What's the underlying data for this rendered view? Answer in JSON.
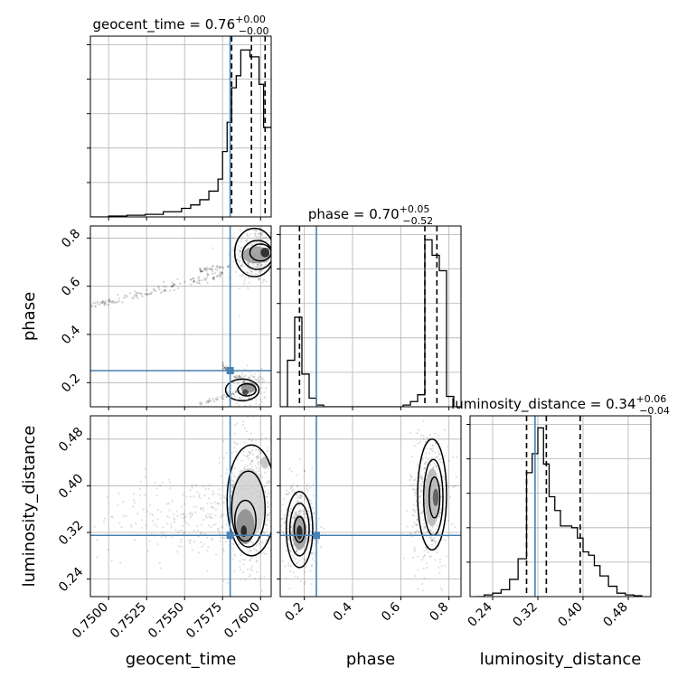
{
  "chart_data": {
    "type": "corner",
    "grid": true,
    "truth_color": "#4682b4",
    "hist_color": "#000000",
    "parameters": [
      {
        "name": "geocent_time",
        "title_prefix": "geocent_time = 0.76",
        "title_sup": "+0.00",
        "title_sub": "−0.00",
        "xlim": [
          0.7488,
          0.7607
        ],
        "ticks": [
          0.75,
          0.7525,
          0.755,
          0.7575,
          0.76
        ],
        "tick_labels": [
          "0.7500",
          "0.7525",
          "0.7550",
          "0.7575",
          "0.7600"
        ],
        "truth": 0.758,
        "quantiles": [
          0.7581,
          0.7594,
          0.7603
        ],
        "hist_max": 1.0,
        "hist_edges": [
          0.7488,
          0.75,
          0.7512,
          0.7524,
          0.7536,
          0.7548,
          0.7554,
          0.756,
          0.7566,
          0.7572,
          0.7575,
          0.7578,
          0.7581,
          0.7584,
          0.7587,
          0.759,
          0.7593,
          0.7596,
          0.7599,
          0.7602,
          0.7605,
          0.7607
        ],
        "hist_values": [
          0.0,
          0.005,
          0.01,
          0.015,
          0.03,
          0.05,
          0.07,
          0.1,
          0.15,
          0.22,
          0.38,
          0.55,
          0.75,
          0.82,
          0.97,
          0.97,
          0.93,
          0.93,
          0.77,
          0.52,
          0.52
        ]
      },
      {
        "name": "phase",
        "title_prefix": "phase = 0.70",
        "title_sup": "+0.05",
        "title_sub": "−0.52",
        "xlim": [
          0.1,
          0.85
        ],
        "ticks": [
          0.2,
          0.4,
          0.6,
          0.8
        ],
        "tick_labels": [
          "0.2",
          "0.4",
          "0.6",
          "0.8"
        ],
        "truth": 0.25,
        "quantiles": [
          0.18,
          0.7,
          0.75
        ],
        "hist_max": 1.0,
        "hist_edges": [
          0.1,
          0.13,
          0.16,
          0.19,
          0.22,
          0.25,
          0.28,
          0.31,
          0.34,
          0.37,
          0.4,
          0.43,
          0.46,
          0.49,
          0.52,
          0.55,
          0.58,
          0.61,
          0.64,
          0.67,
          0.7,
          0.73,
          0.76,
          0.79,
          0.82,
          0.85
        ],
        "hist_values": [
          0.0,
          0.27,
          0.52,
          0.19,
          0.05,
          0.01,
          0.0,
          0.0,
          0.0,
          0.0,
          0.0,
          0.0,
          0.0,
          0.0,
          0.0,
          0.0,
          0.0,
          0.01,
          0.03,
          0.07,
          0.97,
          0.88,
          0.79,
          0.06,
          0.0
        ]
      },
      {
        "name": "luminosity_distance",
        "title_prefix": "luminosity_distance = 0.34",
        "title_sup": "+0.06",
        "title_sub": "−0.04",
        "xlim": [
          0.2,
          0.52
        ],
        "ticks": [
          0.24,
          0.32,
          0.4,
          0.48
        ],
        "tick_labels": [
          "0.24",
          "0.32",
          "0.40",
          "0.48"
        ],
        "truth": 0.315,
        "quantiles": [
          0.3,
          0.335,
          0.395
        ],
        "hist_max": 1.0,
        "hist_edges": [
          0.21,
          0.225,
          0.24,
          0.255,
          0.27,
          0.285,
          0.3,
          0.31,
          0.32,
          0.33,
          0.34,
          0.35,
          0.36,
          0.37,
          0.38,
          0.39,
          0.4,
          0.41,
          0.42,
          0.43,
          0.445,
          0.46,
          0.475,
          0.49,
          0.505
        ],
        "hist_values": [
          0.0,
          0.01,
          0.02,
          0.04,
          0.1,
          0.22,
          0.72,
          0.83,
          0.98,
          0.77,
          0.58,
          0.5,
          0.41,
          0.41,
          0.4,
          0.34,
          0.26,
          0.24,
          0.18,
          0.12,
          0.06,
          0.02,
          0.01,
          0.005
        ]
      }
    ],
    "pairs": [
      {
        "x": "geocent_time",
        "y": "phase",
        "truth": [
          0.758,
          0.25
        ],
        "ylim": [
          0.1,
          0.85
        ],
        "yticks": [
          0.2,
          0.4,
          0.6,
          0.8
        ],
        "ytick_labels": [
          "0.2",
          "0.4",
          "0.6",
          "0.8"
        ],
        "streaks": [
          {
            "from": [
              0.7488,
              0.52
            ],
            "to": [
              0.758,
              0.655
            ],
            "width": 0.03,
            "count": 140
          },
          {
            "from": [
              0.756,
              0.665
            ],
            "to": [
              0.758,
              0.685
            ],
            "width": 0.02,
            "count": 40
          },
          {
            "from": [
              0.7575,
              0.27
            ],
            "to": [
              0.759,
              0.2
            ],
            "width": 0.03,
            "count": 40
          },
          {
            "from": [
              0.756,
              0.11
            ],
            "to": [
              0.759,
              0.17
            ],
            "width": 0.02,
            "count": 40
          }
        ],
        "clusters": [
          {
            "center": [
              0.7597,
              0.73
            ],
            "spread": [
              0.0007,
              0.06
            ],
            "count": 350
          },
          {
            "center": [
              0.7592,
              0.17
            ],
            "spread": [
              0.0006,
              0.04
            ],
            "count": 170
          }
        ],
        "blobs": [
          {
            "center": [
              0.7597,
              0.73
            ],
            "rx": 0.0009,
            "ry": 0.035,
            "fill": "#9a9a9a"
          },
          {
            "center": [
              0.7603,
              0.74
            ],
            "rx": 0.0003,
            "ry": 0.02,
            "fill": "#1e1e1e"
          },
          {
            "center": [
              0.7592,
              0.18
            ],
            "rx": 0.0005,
            "ry": 0.022,
            "fill": "#8a8a8a"
          },
          {
            "center": [
              0.759,
              0.16
            ],
            "rx": 0.0002,
            "ry": 0.012,
            "fill": "#3a3a3a"
          }
        ],
        "contours": [
          {
            "center": [
              0.7596,
              0.74
            ],
            "rx": 0.0013,
            "ry": 0.1,
            "width": 1.5
          },
          {
            "center": [
              0.7598,
              0.73
            ],
            "rx": 0.001,
            "ry": 0.06,
            "width": 1.5
          },
          {
            "center": [
              0.76,
              0.74
            ],
            "rx": 0.0007,
            "ry": 0.035,
            "width": 1.5
          },
          {
            "center": [
              0.7588,
              0.17
            ],
            "rx": 0.0011,
            "ry": 0.045,
            "width": 1.5
          },
          {
            "center": [
              0.7591,
              0.17
            ],
            "rx": 0.0006,
            "ry": 0.025,
            "width": 1.5
          }
        ]
      },
      {
        "x": "geocent_time",
        "y": "luminosity_distance",
        "truth": [
          0.758,
          0.315
        ],
        "ylim": [
          0.21,
          0.52
        ],
        "yticks": [
          0.24,
          0.32,
          0.4,
          0.48
        ],
        "ytick_labels": [
          "0.24",
          "0.32",
          "0.40",
          "0.48"
        ],
        "streaks": [],
        "clusters": [
          {
            "center": [
              0.7555,
              0.345
            ],
            "spread": [
              0.003,
              0.035
            ],
            "count": 260
          },
          {
            "center": [
              0.7594,
              0.38
            ],
            "spread": [
              0.0009,
              0.06
            ],
            "count": 520
          }
        ],
        "blobs": [
          {
            "center": [
              0.7592,
              0.37
            ],
            "rx": 0.0011,
            "ry": 0.06,
            "fill": "#d0d0d0"
          },
          {
            "center": [
              0.759,
              0.33
            ],
            "rx": 0.0006,
            "ry": 0.03,
            "fill": "#8a8a8a"
          },
          {
            "center": [
              0.7589,
              0.322
            ],
            "rx": 0.0002,
            "ry": 0.01,
            "fill": "#1a1a1a"
          },
          {
            "center": [
              0.7603,
              0.44
            ],
            "rx": 0.0003,
            "ry": 0.01,
            "fill": "#c0c0c0"
          }
        ],
        "contours": [
          {
            "center": [
              0.7594,
              0.375
            ],
            "rx": 0.0016,
            "ry": 0.095,
            "width": 1.5
          },
          {
            "center": [
              0.7592,
              0.36
            ],
            "rx": 0.0011,
            "ry": 0.065,
            "width": 1.5
          },
          {
            "center": [
              0.759,
              0.34
            ],
            "rx": 0.0007,
            "ry": 0.035,
            "width": 1.5
          }
        ]
      },
      {
        "x": "phase",
        "y": "luminosity_distance",
        "truth": [
          0.25,
          0.315
        ],
        "ylim": [
          0.21,
          0.52
        ],
        "yticks": [
          0.24,
          0.32,
          0.4,
          0.48
        ],
        "ytick_labels": [
          "0.24",
          "0.32",
          "0.40",
          "0.48"
        ],
        "streaks": [],
        "clusters": [
          {
            "center": [
              0.18,
              0.33
            ],
            "spread": [
              0.035,
              0.04
            ],
            "count": 340
          },
          {
            "center": [
              0.72,
              0.38
            ],
            "spread": [
              0.04,
              0.06
            ],
            "count": 420
          }
        ],
        "blobs": [
          {
            "center": [
              0.18,
              0.32
            ],
            "rx": 0.03,
            "ry": 0.03,
            "fill": "#9a9a9a"
          },
          {
            "center": [
              0.18,
              0.32
            ],
            "rx": 0.012,
            "ry": 0.012,
            "fill": "#1a1a1a"
          },
          {
            "center": [
              0.73,
              0.38
            ],
            "rx": 0.03,
            "ry": 0.05,
            "fill": "#b5b5b5"
          },
          {
            "center": [
              0.745,
              0.38
            ],
            "rx": 0.012,
            "ry": 0.015,
            "fill": "#555555"
          }
        ],
        "contours": [
          {
            "center": [
              0.18,
              0.325
            ],
            "rx": 0.055,
            "ry": 0.065,
            "width": 1.5
          },
          {
            "center": [
              0.18,
              0.325
            ],
            "rx": 0.04,
            "ry": 0.045,
            "width": 1.5
          },
          {
            "center": [
              0.18,
              0.325
            ],
            "rx": 0.022,
            "ry": 0.022,
            "width": 1.5
          },
          {
            "center": [
              0.73,
              0.385
            ],
            "rx": 0.06,
            "ry": 0.095,
            "width": 1.5
          },
          {
            "center": [
              0.735,
              0.38
            ],
            "rx": 0.04,
            "ry": 0.065,
            "width": 1.5
          },
          {
            "center": [
              0.74,
              0.38
            ],
            "rx": 0.022,
            "ry": 0.035,
            "width": 1.5
          }
        ]
      }
    ]
  }
}
